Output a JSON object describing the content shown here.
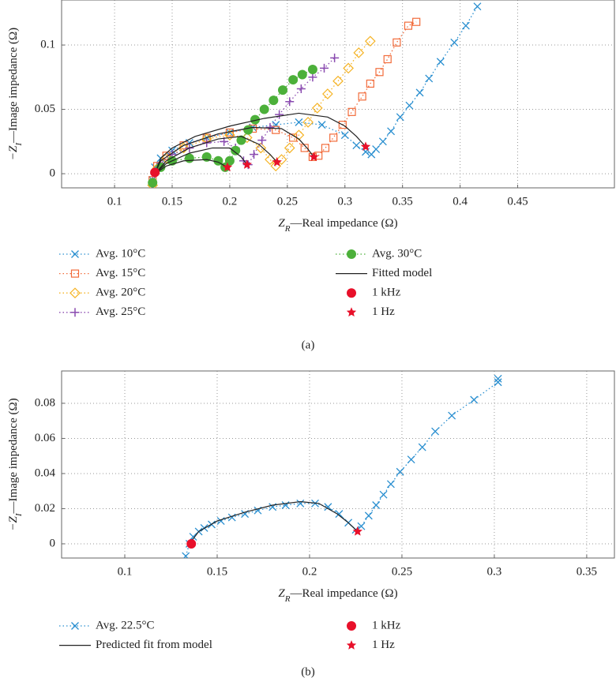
{
  "chart_data": [
    {
      "type": "scatter",
      "xlabel": [
        "Z",
        "R",
        "—Real impedance (Ω)"
      ],
      "ylabel": [
        "−Z",
        "I",
        "—Image impedance (Ω)"
      ],
      "xlim": [
        0.054,
        0.534
      ],
      "ylim": [
        -0.011,
        0.135
      ],
      "xticks": [
        0.1,
        0.15,
        0.2,
        0.25,
        0.3,
        0.35,
        0.4,
        0.45
      ],
      "yticks": [
        0,
        0.05,
        0.1
      ],
      "grid": true,
      "legend_columns": 2,
      "caption": "(a)",
      "series": [
        {
          "name": "Avg. 10°C",
          "color": "#2a8fd0",
          "marker": "x",
          "linestyle": "dotted",
          "x": [
            0.133,
            0.135,
            0.14,
            0.15,
            0.165,
            0.18,
            0.2,
            0.22,
            0.24,
            0.26,
            0.28,
            0.3,
            0.31,
            0.318,
            0.323,
            0.327,
            0.333,
            0.34,
            0.348,
            0.356,
            0.365,
            0.373,
            0.383,
            0.395,
            0.405,
            0.415
          ],
          "values": [
            -0.005,
            0.005,
            0.012,
            0.018,
            0.024,
            0.028,
            0.032,
            0.036,
            0.038,
            0.04,
            0.038,
            0.03,
            0.022,
            0.017,
            0.015,
            0.019,
            0.025,
            0.033,
            0.044,
            0.053,
            0.063,
            0.074,
            0.087,
            0.102,
            0.115,
            0.13
          ]
        },
        {
          "name": "Avg. 15°C",
          "color": "#f26b3a",
          "marker": "square",
          "linestyle": "dotted",
          "x": [
            0.133,
            0.137,
            0.145,
            0.16,
            0.18,
            0.2,
            0.22,
            0.24,
            0.255,
            0.265,
            0.272,
            0.277,
            0.283,
            0.29,
            0.298,
            0.306,
            0.315,
            0.322,
            0.33,
            0.337,
            0.345,
            0.355,
            0.362
          ],
          "values": [
            -0.005,
            0.006,
            0.014,
            0.022,
            0.028,
            0.032,
            0.035,
            0.034,
            0.028,
            0.02,
            0.013,
            0.014,
            0.02,
            0.028,
            0.038,
            0.048,
            0.06,
            0.07,
            0.079,
            0.089,
            0.102,
            0.115,
            0.118
          ]
        },
        {
          "name": "Avg. 20°C",
          "color": "#f5b324",
          "marker": "diamond",
          "linestyle": "dotted",
          "x": [
            0.133,
            0.137,
            0.145,
            0.16,
            0.18,
            0.2,
            0.215,
            0.227,
            0.235,
            0.24,
            0.245,
            0.252,
            0.26,
            0.268,
            0.276,
            0.285,
            0.294,
            0.303,
            0.312,
            0.322
          ],
          "values": [
            -0.009,
            0.004,
            0.012,
            0.02,
            0.027,
            0.03,
            0.028,
            0.02,
            0.011,
            0.006,
            0.011,
            0.02,
            0.03,
            0.04,
            0.051,
            0.062,
            0.072,
            0.082,
            0.094,
            0.103
          ]
        },
        {
          "name": "Avg. 25°C",
          "color": "#8a4bb0",
          "marker": "plus",
          "linestyle": "dotted",
          "x": [
            0.133,
            0.14,
            0.15,
            0.165,
            0.18,
            0.195,
            0.205,
            0.212,
            0.216,
            0.221,
            0.228,
            0.235,
            0.243,
            0.252,
            0.262,
            0.272,
            0.282,
            0.291
          ],
          "values": [
            -0.006,
            0.008,
            0.015,
            0.02,
            0.024,
            0.025,
            0.02,
            0.01,
            0.007,
            0.015,
            0.026,
            0.036,
            0.046,
            0.056,
            0.066,
            0.075,
            0.082,
            0.09
          ]
        },
        {
          "name": "Avg. 30°C",
          "color": "#4cb03a",
          "marker": "circle",
          "linestyle": "dotted",
          "x": [
            0.133,
            0.14,
            0.15,
            0.165,
            0.18,
            0.19,
            0.196,
            0.2,
            0.205,
            0.21,
            0.216,
            0.222,
            0.23,
            0.238,
            0.246,
            0.255,
            0.263,
            0.272
          ],
          "values": [
            -0.007,
            0.005,
            0.01,
            0.012,
            0.013,
            0.01,
            0.005,
            0.01,
            0.018,
            0.026,
            0.034,
            0.042,
            0.05,
            0.057,
            0.065,
            0.073,
            0.077,
            0.081
          ]
        },
        {
          "name": "Fitted model",
          "color": "#222222",
          "marker": "none",
          "linestyle": "solid",
          "x": [
            0.135,
            0.14,
            0.15,
            0.17,
            0.2,
            0.23,
            0.26,
            0.285,
            0.3,
            0.31,
            0.318,
            null,
            0.135,
            0.14,
            0.16,
            0.19,
            0.22,
            0.245,
            0.26,
            0.268,
            0.273,
            null,
            0.135,
            0.145,
            0.165,
            0.19,
            0.21,
            0.225,
            0.235,
            0.241,
            null,
            0.135,
            0.145,
            0.165,
            0.185,
            0.2,
            0.21,
            0.215,
            null,
            0.135,
            0.145,
            0.16,
            0.18,
            0.19,
            0.198
          ],
          "values": [
            0,
            0.012,
            0.02,
            0.029,
            0.037,
            0.043,
            0.047,
            0.044,
            0.037,
            0.029,
            0.021,
            null,
            0,
            0.01,
            0.022,
            0.031,
            0.036,
            0.035,
            0.027,
            0.019,
            0.013,
            null,
            0,
            0.01,
            0.02,
            0.027,
            0.029,
            0.023,
            0.015,
            0.009,
            null,
            0,
            0.008,
            0.016,
            0.02,
            0.02,
            0.013,
            0.007,
            null,
            0,
            0.006,
            0.01,
            0.011,
            0.009,
            0.005
          ]
        },
        {
          "name": "1 kHz",
          "color": "#e8102a",
          "marker": "circle",
          "linestyle": "none",
          "x": [
            0.135
          ],
          "values": [
            0.001
          ]
        },
        {
          "name": "1 Hz",
          "color": "#e8102a",
          "marker": "star",
          "linestyle": "none",
          "x": [
            0.318,
            0.273,
            0.241,
            0.215,
            0.198
          ],
          "values": [
            0.021,
            0.013,
            0.009,
            0.007,
            0.005
          ]
        }
      ]
    },
    {
      "type": "scatter",
      "xlabel": [
        "Z",
        "R",
        "—Real impedance (Ω)"
      ],
      "ylabel": [
        "−Z",
        "I",
        "—Image impedance (Ω)"
      ],
      "xlim": [
        0.0658,
        0.365
      ],
      "ylim": [
        -0.0081,
        0.0984
      ],
      "xticks": [
        0.1,
        0.15,
        0.2,
        0.25,
        0.3,
        0.35
      ],
      "yticks": [
        0,
        0.02,
        0.04,
        0.06,
        0.08
      ],
      "grid": true,
      "legend_columns": 2,
      "caption": "(b)",
      "series": [
        {
          "name": "Avg. 22.5°C",
          "color": "#2a8fd0",
          "marker": "x",
          "linestyle": "dotted",
          "x": [
            0.133,
            0.135,
            0.137,
            0.14,
            0.143,
            0.147,
            0.152,
            0.158,
            0.165,
            0.172,
            0.18,
            0.187,
            0.195,
            0.203,
            0.21,
            0.216,
            0.221,
            0.225,
            0.228,
            0.232,
            0.236,
            0.24,
            0.244,
            0.249,
            0.255,
            0.261,
            0.268,
            0.277,
            0.289,
            0.302,
            0.302
          ],
          "values": [
            -0.007,
            0,
            0.004,
            0.007,
            0.009,
            0.011,
            0.013,
            0.015,
            0.017,
            0.019,
            0.021,
            0.022,
            0.023,
            0.023,
            0.021,
            0.017,
            0.012,
            0.008,
            0.01,
            0.016,
            0.022,
            0.028,
            0.034,
            0.041,
            0.048,
            0.055,
            0.064,
            0.073,
            0.082,
            0.092,
            0.094
          ]
        },
        {
          "name": "Predicted fit from model",
          "color": "#222222",
          "marker": "none",
          "linestyle": "solid",
          "x": [
            0.135,
            0.14,
            0.15,
            0.165,
            0.18,
            0.195,
            0.205,
            0.215,
            0.221,
            0.226
          ],
          "values": [
            0,
            0.007,
            0.013,
            0.018,
            0.022,
            0.024,
            0.023,
            0.017,
            0.012,
            0.007
          ]
        },
        {
          "name": "1 kHz",
          "color": "#e8102a",
          "marker": "circle",
          "linestyle": "none",
          "x": [
            0.136
          ],
          "values": [
            0
          ]
        },
        {
          "name": "1 Hz",
          "color": "#e8102a",
          "marker": "star",
          "linestyle": "none",
          "x": [
            0.226
          ],
          "values": [
            0.007
          ]
        }
      ]
    }
  ]
}
